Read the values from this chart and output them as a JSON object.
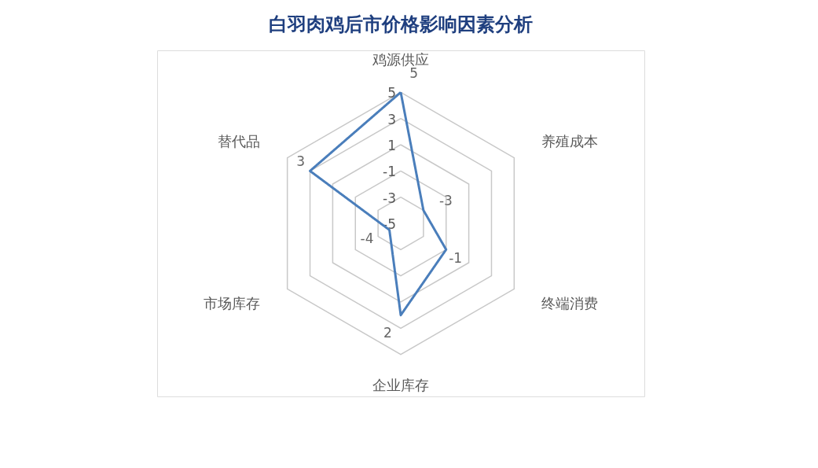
{
  "chart_data": {
    "type": "radar",
    "title": "白羽肉鸡后市价格影响因素分析",
    "categories": [
      "鸡源供应",
      "养殖成本",
      "终端消费",
      "企业库存",
      "市场库存",
      "替代品"
    ],
    "series": [
      {
        "color": "#4a7ebb",
        "values": [
          5,
          -3,
          -1,
          2,
          -4,
          3
        ]
      }
    ],
    "ylim": [
      -5,
      5
    ],
    "yticks": [
      -5,
      -3,
      -1,
      1,
      3,
      5
    ],
    "data_labels": true,
    "grid": true,
    "marker": "none",
    "line_style": "solid"
  }
}
